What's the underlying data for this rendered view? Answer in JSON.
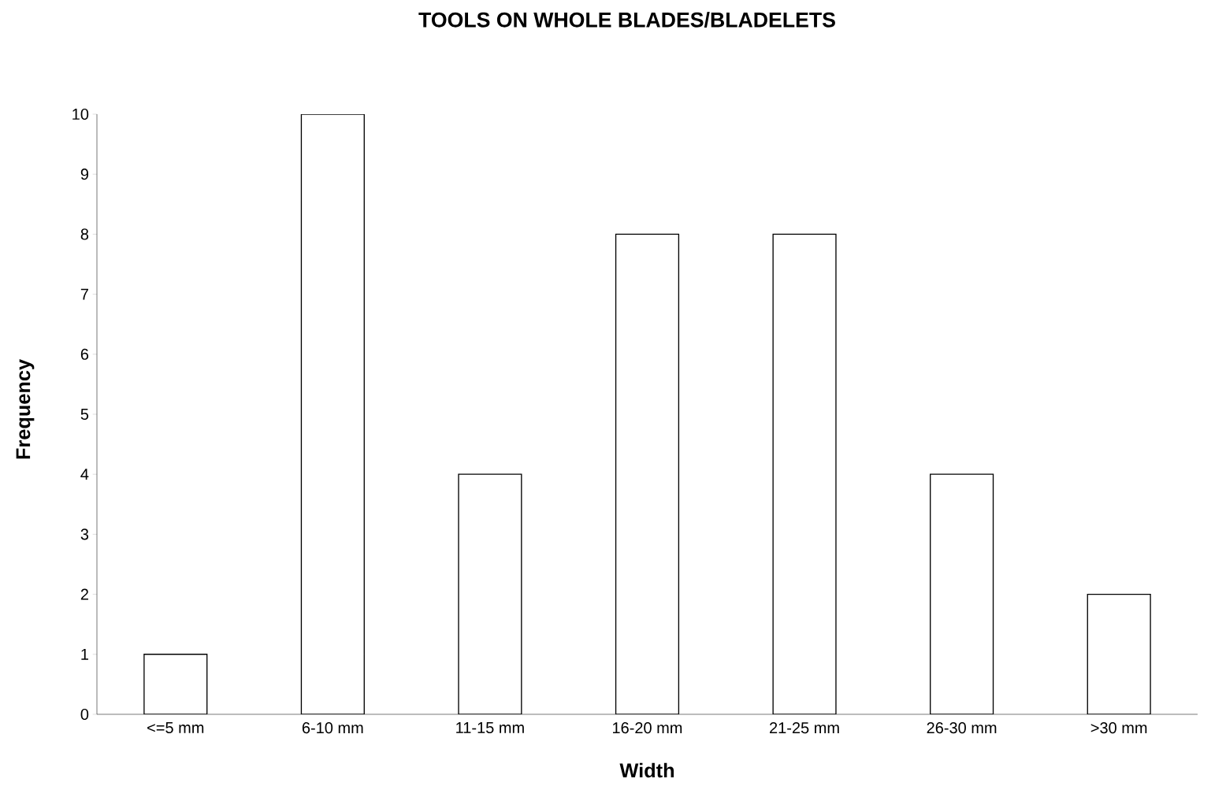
{
  "chart_data": {
    "type": "bar",
    "title": "TOOLS ON WHOLE BLADES/BLADELETS",
    "xlabel": "Width",
    "ylabel": "Frequency",
    "categories": [
      "<=5 mm",
      "6-10 mm",
      "11-15 mm",
      "16-20 mm",
      "21-25 mm",
      "26-30 mm",
      ">30 mm"
    ],
    "values": [
      1,
      10,
      4,
      8,
      8,
      4,
      2
    ],
    "color": "#ffffff",
    "ylim": [
      0,
      10
    ],
    "yticks": [
      0,
      1,
      2,
      3,
      4,
      5,
      6,
      7,
      8,
      9,
      10
    ],
    "grid": false
  }
}
